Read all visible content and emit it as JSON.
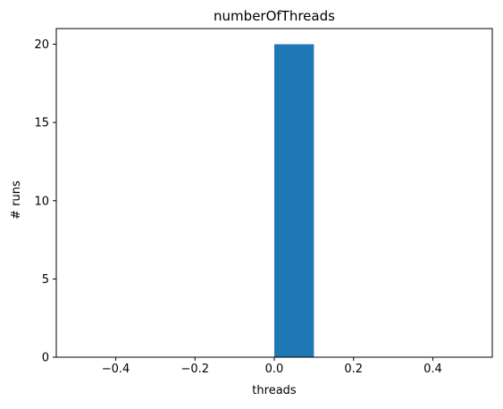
{
  "chart_data": {
    "type": "bar",
    "title": "numberOfThreads",
    "xlabel": "threads",
    "ylabel": "# runs",
    "xlim": [
      -0.55,
      0.55
    ],
    "ylim": [
      0,
      21
    ],
    "xticks": [
      -0.4,
      -0.2,
      0.0,
      0.2,
      0.4
    ],
    "xtick_labels": [
      "−0.4",
      "−0.2",
      "0.0",
      "0.2",
      "0.4"
    ],
    "yticks": [
      0,
      5,
      10,
      15,
      20
    ],
    "ytick_labels": [
      "0",
      "5",
      "10",
      "15",
      "20"
    ],
    "bars": [
      {
        "x_start": 0.0,
        "x_end": 0.1,
        "value": 20
      }
    ],
    "bar_color": "#1f77b4",
    "grid": false,
    "legend": "none"
  }
}
